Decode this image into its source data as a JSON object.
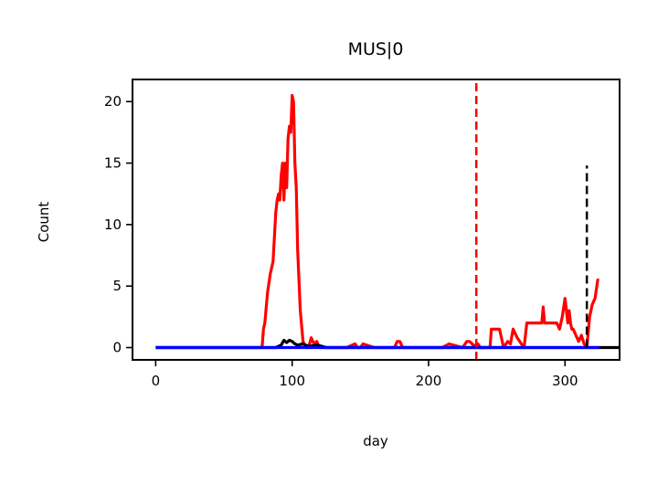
{
  "chart_data": {
    "type": "line",
    "title": "MUS|0",
    "xlabel": "day",
    "ylabel": "Count",
    "xlim": [
      -17,
      340
    ],
    "ylim": [
      -1,
      21.8
    ],
    "xticks": [
      0,
      100,
      200,
      300
    ],
    "yticks": [
      0,
      5,
      10,
      15,
      20
    ],
    "grid": false,
    "series": [
      {
        "color": "#ff0000",
        "x": [
          0,
          78,
          79,
          80,
          82,
          84,
          86,
          88,
          89,
          90,
          91,
          92,
          93,
          94,
          95,
          96,
          97,
          98,
          99,
          100,
          101,
          102,
          103,
          104,
          106,
          108,
          110,
          112,
          114,
          116,
          118,
          120,
          125,
          140,
          146,
          148,
          150,
          152,
          160,
          175,
          177,
          179,
          181,
          185,
          190,
          200,
          210,
          215,
          225,
          228,
          230,
          232,
          234,
          235,
          236,
          238,
          240,
          245,
          246,
          248,
          250,
          252,
          255,
          258,
          260,
          262,
          265,
          268,
          270,
          272,
          275,
          280,
          283,
          284,
          285,
          286,
          290,
          294,
          296,
          298,
          300,
          301,
          302,
          303,
          304,
          305,
          306,
          308,
          310,
          312,
          314,
          316,
          318,
          320,
          322,
          324,
          325
        ],
        "y": [
          0,
          0,
          1.5,
          2,
          4.5,
          6,
          7,
          11,
          12,
          12.5,
          12,
          14,
          15,
          12,
          15,
          13,
          17,
          18,
          17.5,
          20.5,
          20,
          15,
          13,
          8,
          3,
          0.5,
          0,
          0,
          0.8,
          0.3,
          0.5,
          0,
          0,
          0,
          0.3,
          0,
          0,
          0.3,
          0,
          0,
          0.5,
          0.5,
          0,
          0,
          0,
          0,
          0,
          0.3,
          0,
          0.5,
          0.5,
          0.3,
          0,
          0.3,
          0.3,
          0,
          0,
          0,
          1.5,
          1.5,
          1.5,
          1.5,
          0,
          0.5,
          0.3,
          1.5,
          0.8,
          0.3,
          0,
          2,
          2,
          2,
          2,
          3.3,
          2,
          2,
          2,
          2,
          1.5,
          2.5,
          4,
          3,
          2,
          3,
          2,
          1.5,
          1.5,
          1,
          0.5,
          1,
          0.3,
          0,
          2.5,
          3.5,
          4,
          5.5,
          5.5
        ]
      },
      {
        "color": "#000000",
        "x": [
          0,
          88,
          92,
          94,
          96,
          98,
          100,
          102,
          104,
          108,
          112,
          118,
          122,
          125,
          340
        ],
        "y": [
          0,
          0,
          0.2,
          0.6,
          0.4,
          0.6,
          0.5,
          0.3,
          0.2,
          0.3,
          0.1,
          0.2,
          0.1,
          0,
          0
        ]
      },
      {
        "color": "#0000ff",
        "x": [
          0,
          325
        ],
        "y": [
          0,
          0
        ]
      }
    ],
    "vlines": [
      {
        "x": 235,
        "ymin": -1,
        "ymax": 21.8,
        "color": "#ff0000",
        "style": "dashed"
      },
      {
        "x": 316,
        "ymin": 0,
        "ymax": 14.8,
        "color": "#000000",
        "style": "dashed"
      }
    ]
  }
}
